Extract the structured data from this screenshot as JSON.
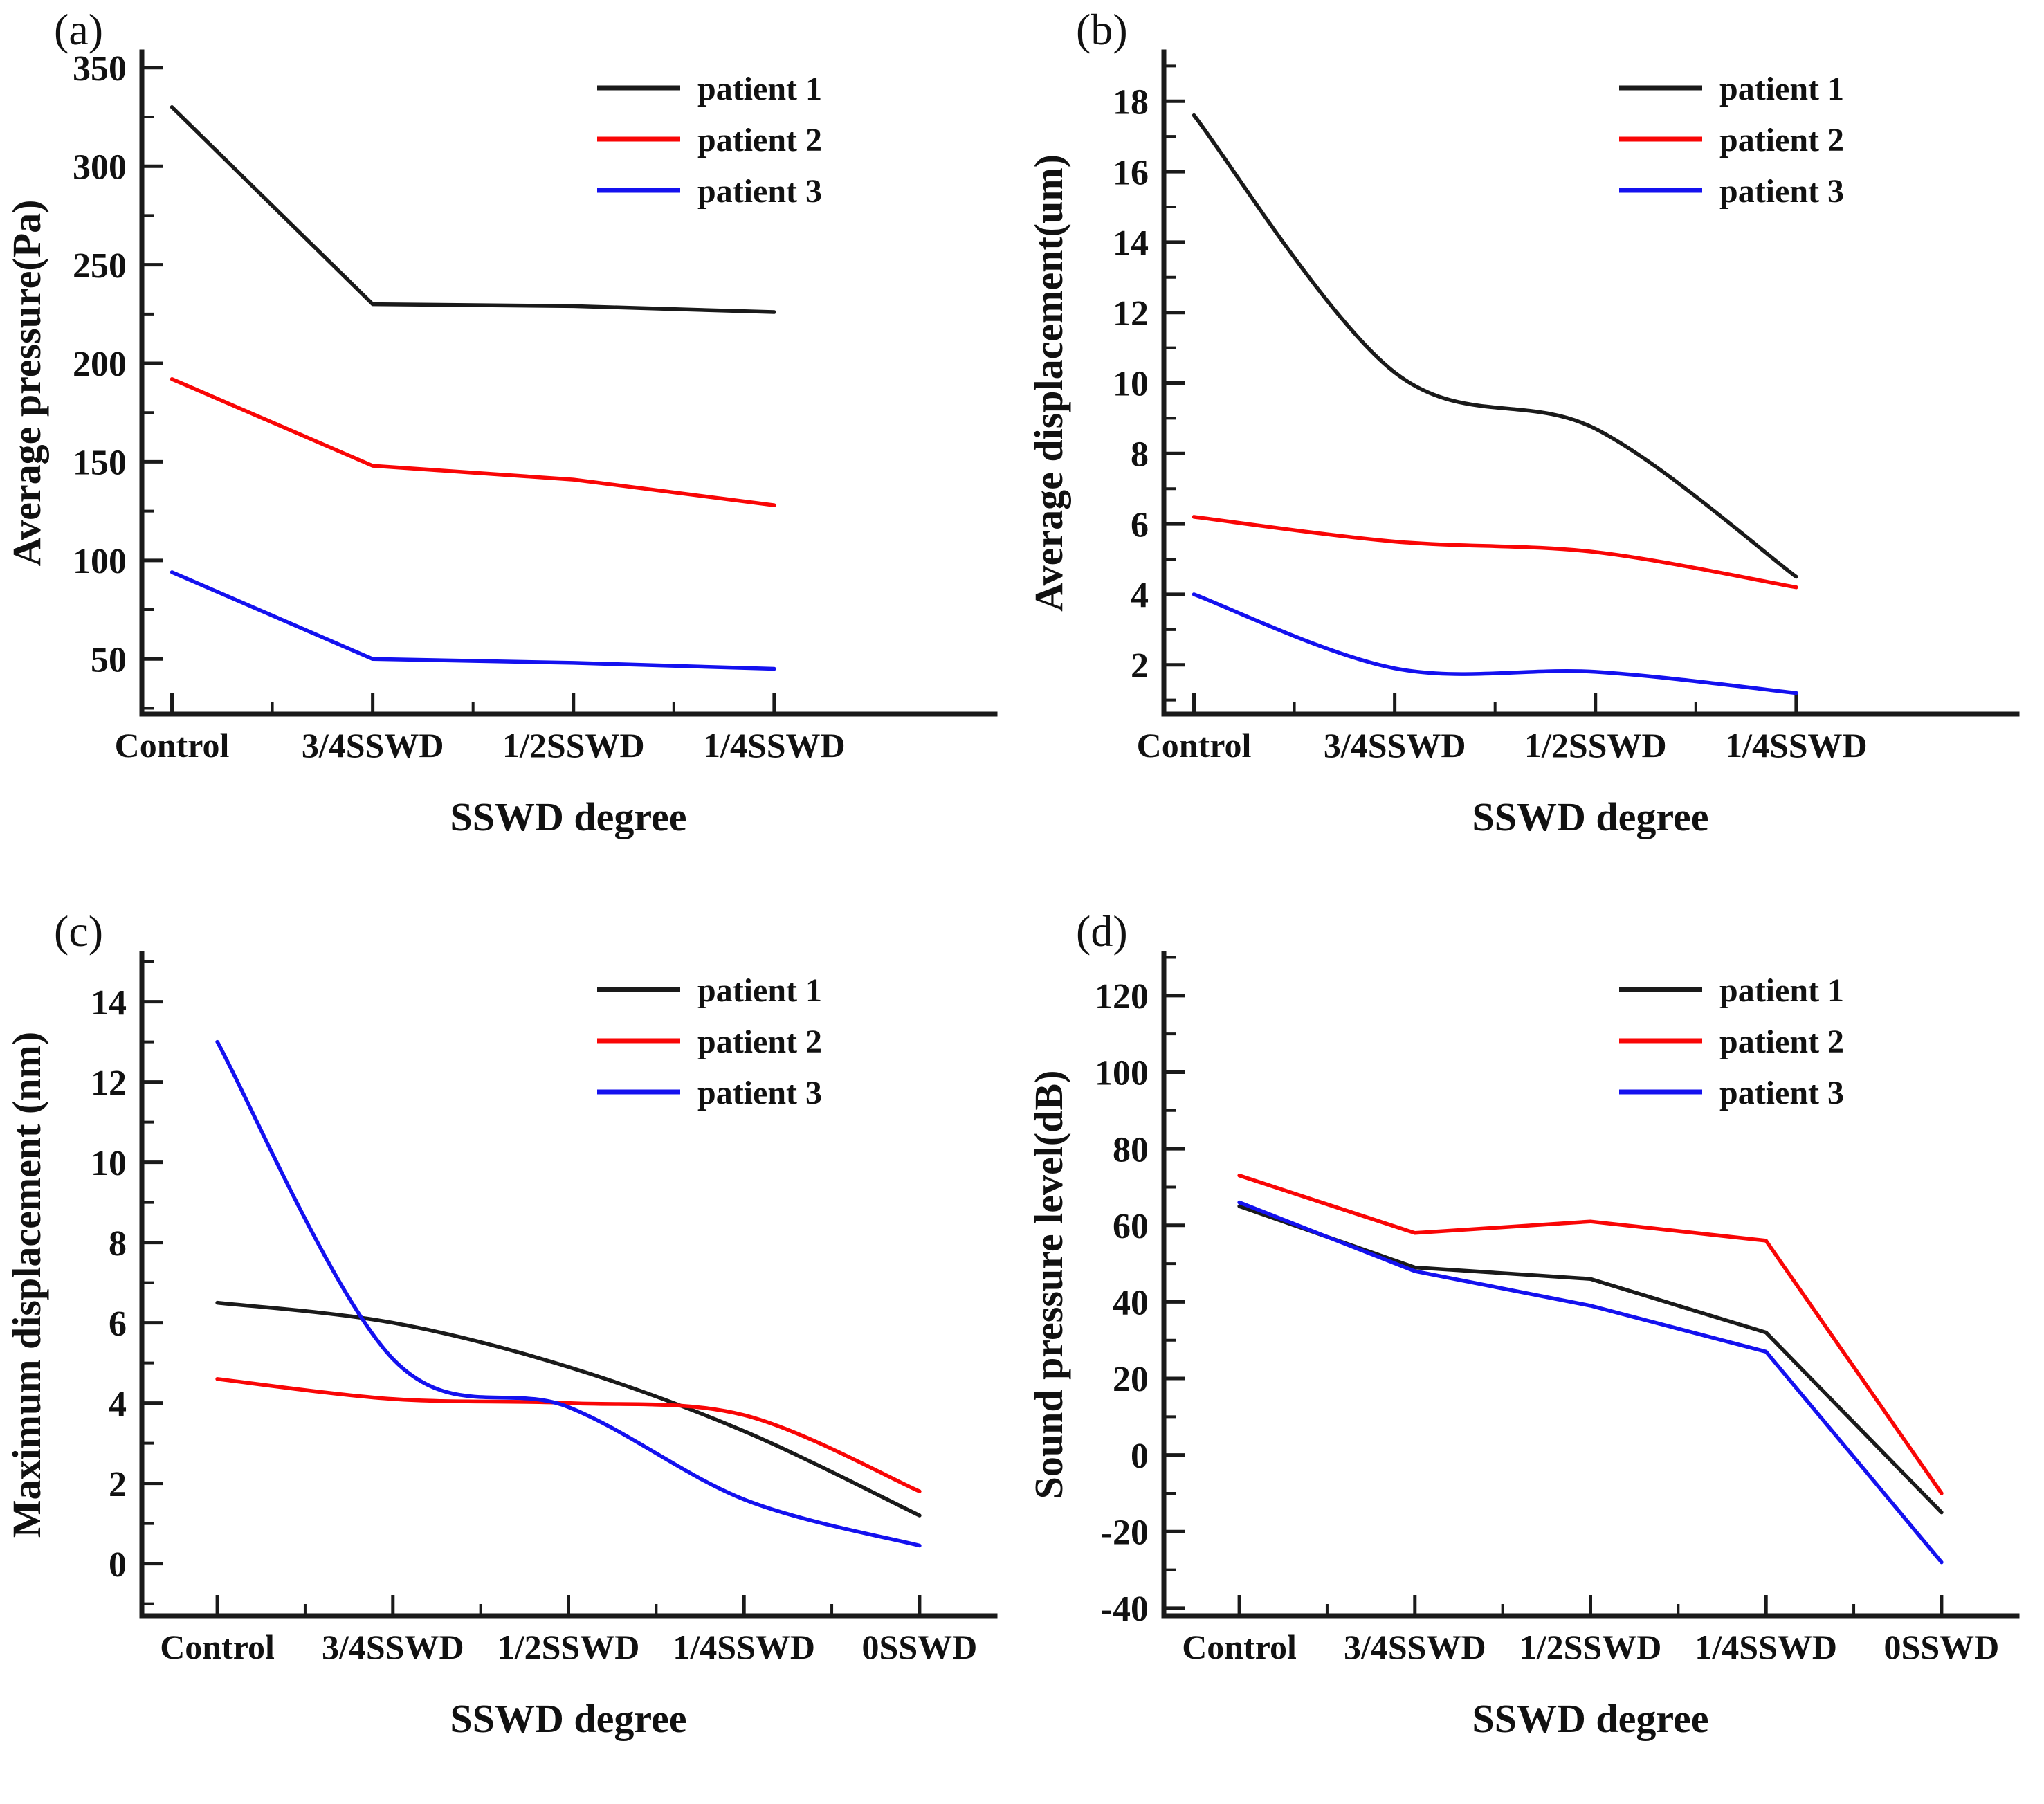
{
  "figure_title": "",
  "colors": {
    "patient 1": "#1a1a1a",
    "patient 2": "#f90606",
    "patient 3": "#1411ef"
  },
  "axis_color": "#1a1a1a",
  "chart_data": [
    {
      "type": "line",
      "panel_label": "(a)",
      "title": "",
      "ylabel": "Average pressure(Pa)",
      "xlabel": "SSWD degree",
      "categories": [
        "Control",
        "3/4SSWD",
        "1/2SSWD",
        "1/4SSWD"
      ],
      "series": [
        {
          "name": "patient 1",
          "values": [
            330,
            230,
            229,
            226
          ]
        },
        {
          "name": "patient 2",
          "values": [
            192,
            148,
            141,
            128
          ]
        },
        {
          "name": "patient 3",
          "values": [
            94,
            50,
            48,
            45
          ]
        }
      ],
      "yticks": [
        50,
        100,
        150,
        200,
        250,
        300,
        350
      ],
      "ylim": [
        22,
        358
      ],
      "xlim": [
        0.85,
        5.1
      ],
      "smooth": false,
      "grid": false,
      "legend": [
        "patient 1",
        "patient 2",
        "patient 3"
      ],
      "legend_position": "top-right"
    },
    {
      "type": "line",
      "panel_label": "(b)",
      "title": "",
      "ylabel": "Average displacement(um)",
      "xlabel": "SSWD degree",
      "categories": [
        "Control",
        "3/4SSWD",
        "1/2SSWD",
        "1/4SSWD"
      ],
      "series": [
        {
          "name": "patient 1",
          "values": [
            17.6,
            10.3,
            8.7,
            4.5
          ]
        },
        {
          "name": "patient 2",
          "values": [
            6.2,
            5.5,
            5.2,
            4.2
          ]
        },
        {
          "name": "patient 3",
          "values": [
            4.0,
            1.9,
            1.8,
            1.2
          ]
        }
      ],
      "yticks": [
        2,
        4,
        6,
        8,
        10,
        12,
        14,
        16,
        18
      ],
      "ylim": [
        0.6,
        19.4
      ],
      "xlim": [
        0.85,
        5.1
      ],
      "smooth": true,
      "grid": false,
      "legend": [
        "patient 1",
        "patient 2",
        "patient 3"
      ],
      "legend_position": "top-right"
    },
    {
      "type": "line",
      "panel_label": "(c)",
      "title": "",
      "ylabel": "Maximum displacement (nm)",
      "xlabel": "SSWD degree",
      "categories": [
        "Control",
        "3/4SSWD",
        "1/2SSWD",
        "1/4SSWD",
        "0SSWD"
      ],
      "series": [
        {
          "name": "patient 1",
          "values": [
            6.5,
            6.0,
            4.9,
            3.3,
            1.2
          ]
        },
        {
          "name": "patient 2",
          "values": [
            4.6,
            4.1,
            4.0,
            3.7,
            1.8
          ]
        },
        {
          "name": "patient 3",
          "values": [
            13.0,
            5.1,
            3.9,
            1.6,
            0.45
          ]
        }
      ],
      "yticks": [
        0,
        2,
        4,
        6,
        8,
        10,
        12,
        14
      ],
      "ylim": [
        -1.3,
        15.2
      ],
      "xlim": [
        0.57,
        5.43
      ],
      "smooth": true,
      "grid": false,
      "legend": [
        "patient 1",
        "patient 2",
        "patient 3"
      ],
      "legend_position": "top-right"
    },
    {
      "type": "line",
      "panel_label": "(d)",
      "title": "",
      "ylabel": "Sound pressure level(dB)",
      "xlabel": "SSWD degree",
      "categories": [
        "Control",
        "3/4SSWD",
        "1/2SSWD",
        "1/4SSWD",
        "0SSWD"
      ],
      "series": [
        {
          "name": "patient 1",
          "values": [
            65,
            49,
            46,
            32,
            -15
          ]
        },
        {
          "name": "patient 2",
          "values": [
            73,
            58,
            61,
            56,
            -10
          ]
        },
        {
          "name": "patient 3",
          "values": [
            66,
            48,
            39,
            27,
            -28
          ]
        }
      ],
      "yticks": [
        -40,
        -20,
        0,
        20,
        40,
        60,
        80,
        100,
        120
      ],
      "ylim": [
        -42,
        131
      ],
      "xlim": [
        0.57,
        5.43
      ],
      "smooth": false,
      "grid": false,
      "legend": [
        "patient 1",
        "patient 2",
        "patient 3"
      ],
      "legend_position": "top-right"
    }
  ]
}
